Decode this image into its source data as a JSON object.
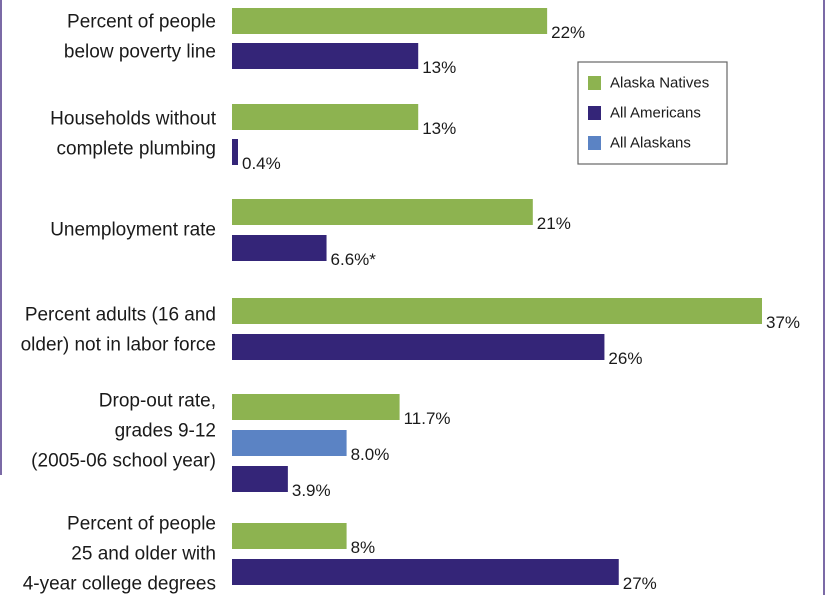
{
  "colors": {
    "border": "#7b6aa6",
    "alaska_natives": "#8db350",
    "all_americans": "#342578",
    "all_alaskans": "#5b83c4"
  },
  "chart_data": {
    "type": "bar",
    "orientation": "horizontal",
    "xlim": [
      0,
      37
    ],
    "legend": {
      "position": "right",
      "entries": [
        "Alaska Natives",
        "All Americans",
        "All Alaskans"
      ]
    },
    "series": [
      {
        "name": "Alaska Natives",
        "color": "#8db350"
      },
      {
        "name": "All Americans",
        "color": "#342578"
      },
      {
        "name": "All Alaskans",
        "color": "#5b83c4"
      }
    ],
    "groups": [
      {
        "label": [
          "Percent of people",
          "below poverty line"
        ],
        "bars": [
          {
            "series": "Alaska Natives",
            "value": 22,
            "text": "22%"
          },
          {
            "series": "All Americans",
            "value": 13,
            "text": "13%"
          }
        ]
      },
      {
        "label": [
          "Households without",
          "complete plumbing"
        ],
        "bars": [
          {
            "series": "Alaska Natives",
            "value": 13,
            "text": "13%"
          },
          {
            "series": "All Americans",
            "value": 0.4,
            "text": "0.4%"
          }
        ]
      },
      {
        "label": [
          "Unemployment rate"
        ],
        "bars": [
          {
            "series": "Alaska Natives",
            "value": 21,
            "text": "21%"
          },
          {
            "series": "All Americans",
            "value": 6.6,
            "text": "6.6%*"
          }
        ]
      },
      {
        "label": [
          "Percent adults (16 and",
          "older) not in labor force"
        ],
        "bars": [
          {
            "series": "Alaska Natives",
            "value": 37,
            "text": "37%"
          },
          {
            "series": "All Americans",
            "value": 26,
            "text": "26%"
          }
        ]
      },
      {
        "label": [
          "Drop-out rate,",
          "grades 9-12",
          "(2005-06 school year)"
        ],
        "bars": [
          {
            "series": "Alaska Natives",
            "value": 11.7,
            "text": "11.7%"
          },
          {
            "series": "All Alaskans",
            "value": 8.0,
            "text": "8.0%"
          },
          {
            "series": "All Americans",
            "value": 3.9,
            "text": "3.9%"
          }
        ]
      },
      {
        "label": [
          "Percent of people",
          "25 and older with",
          "4-year college degrees"
        ],
        "bars": [
          {
            "series": "Alaska Natives",
            "value": 8,
            "text": "8%"
          },
          {
            "series": "All Americans",
            "value": 27,
            "text": "27%"
          }
        ]
      }
    ]
  }
}
